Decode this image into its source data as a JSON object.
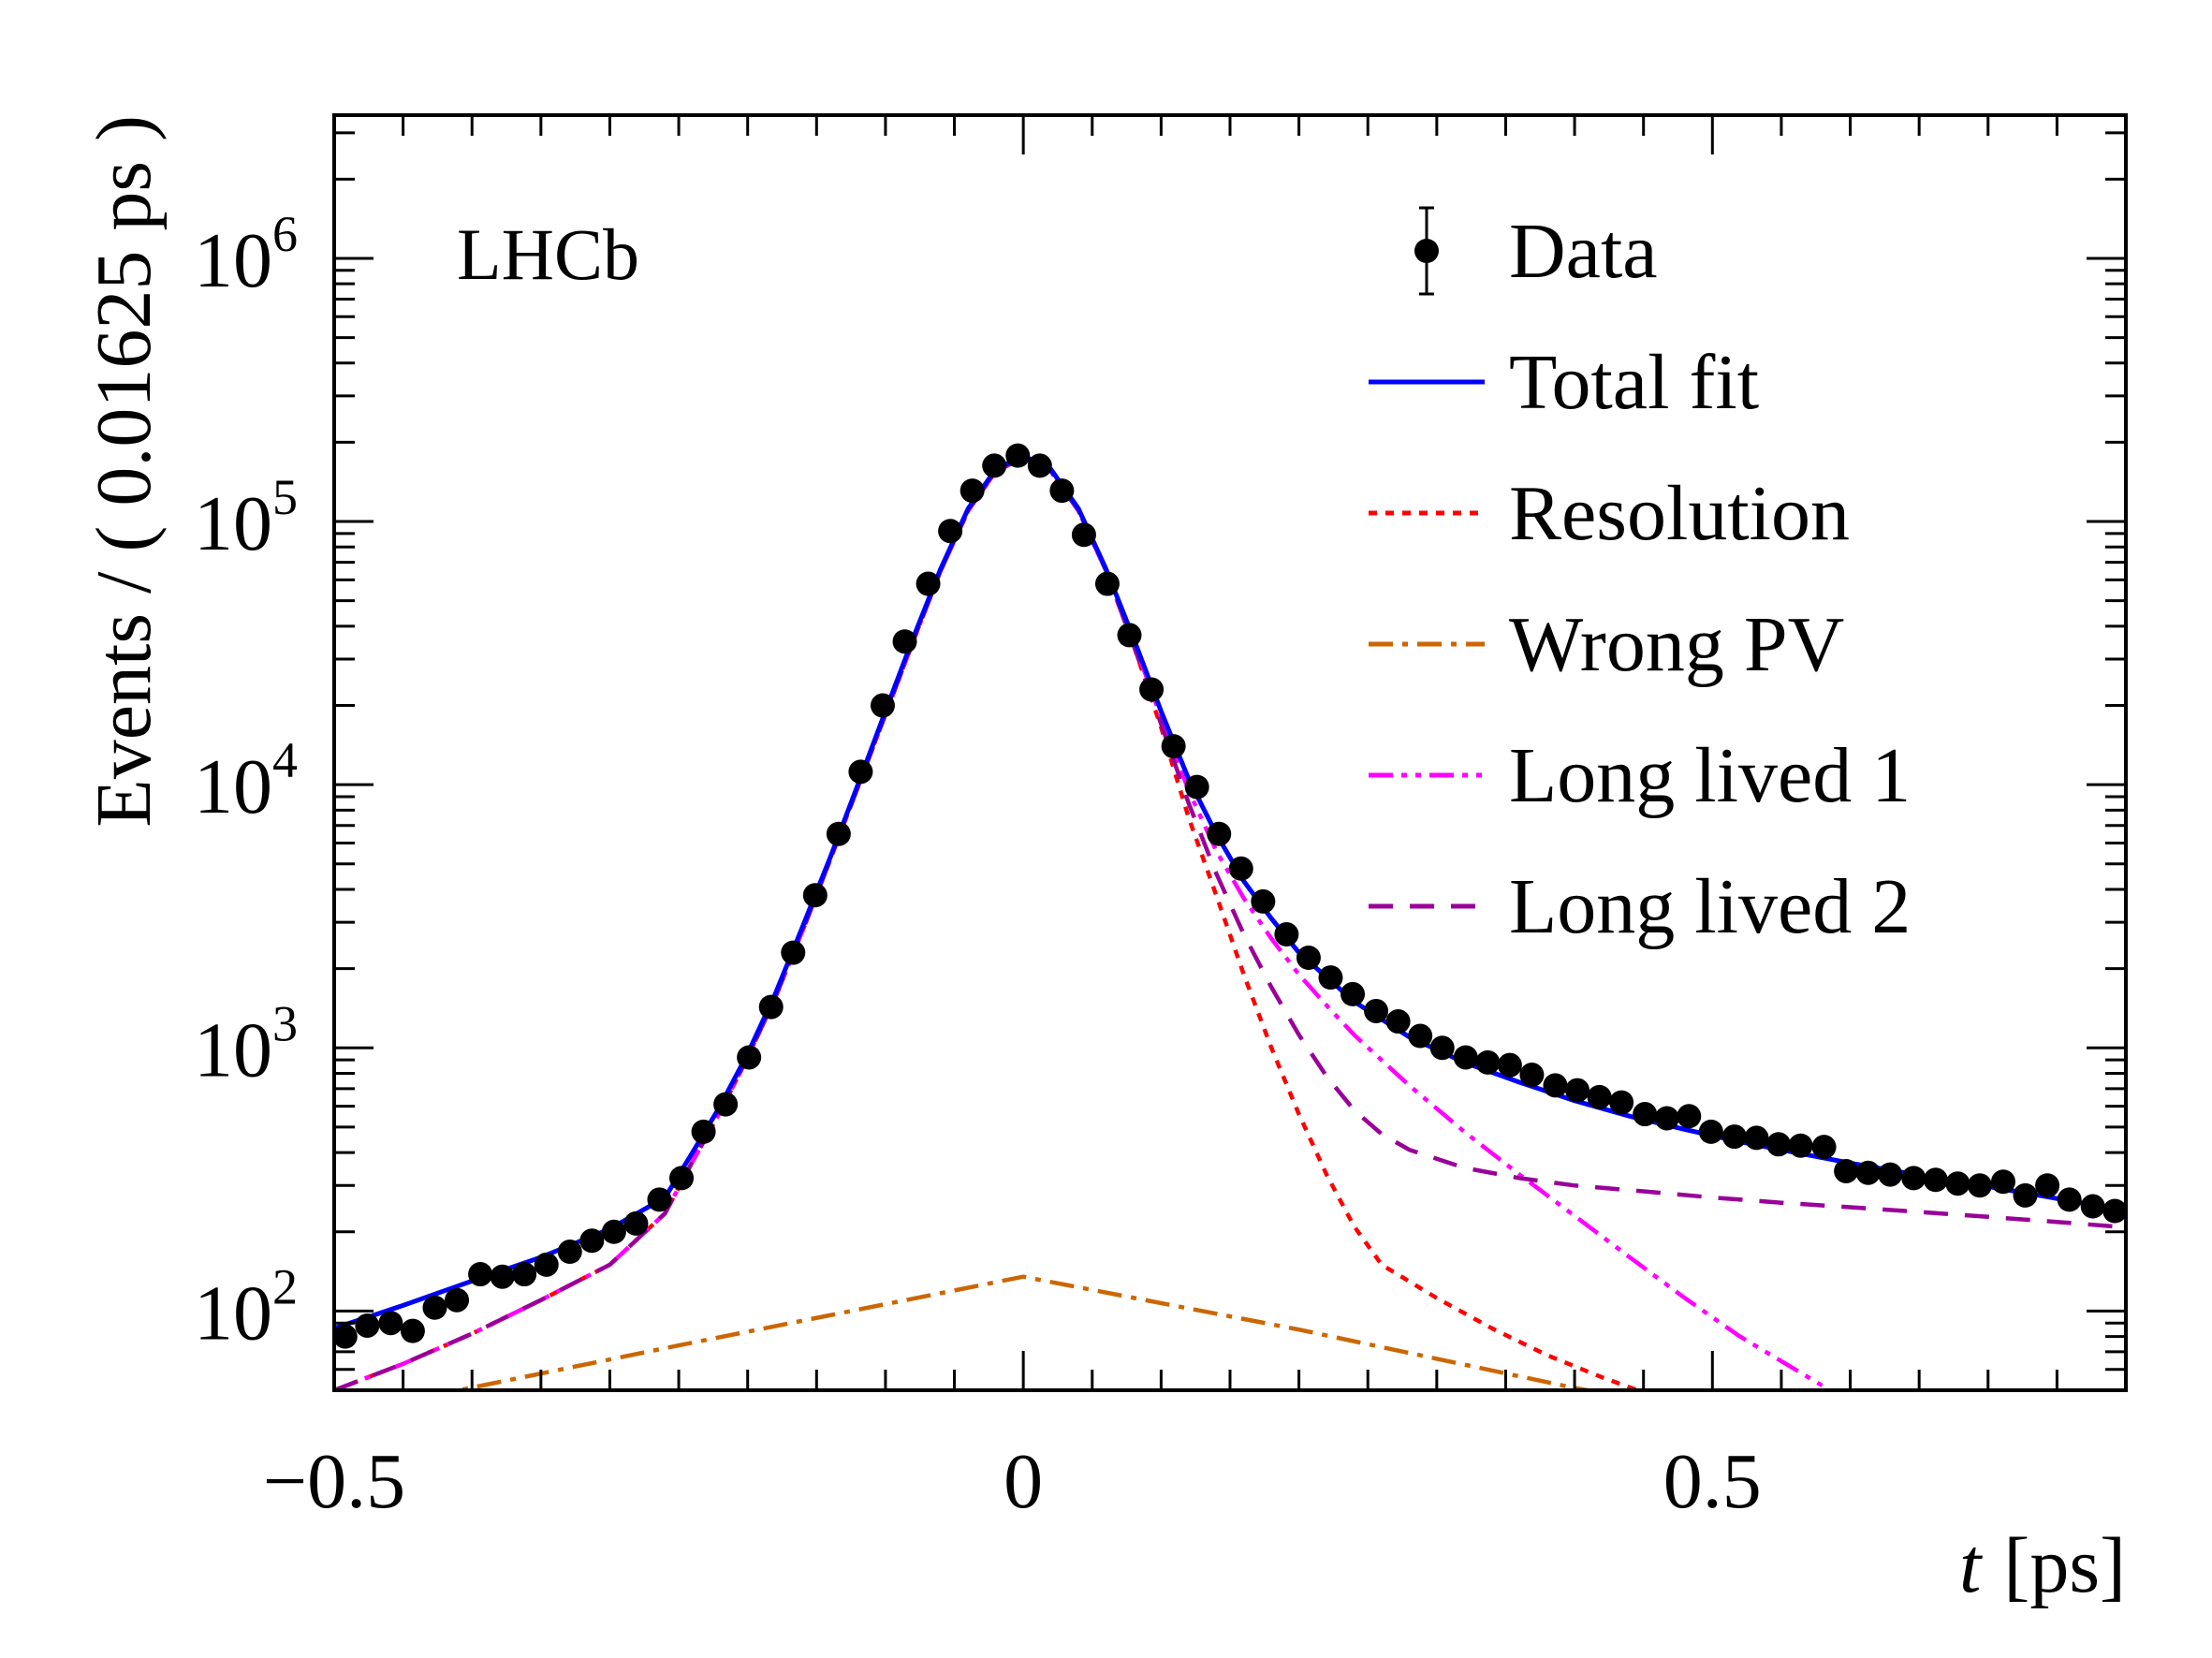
{
  "chart_data": {
    "type": "scatter",
    "experiment_label": "LHCb",
    "xlabel_italic": "t",
    "xlabel_unit": "[ps]",
    "ylabel": "Events / ( 0.01625 ps )",
    "xlim": [
      -0.5,
      0.8
    ],
    "ylim": [
      50,
      3500000
    ],
    "log_y": true,
    "grid": false,
    "legend_placement": "top-right",
    "x_tick_labels": [
      {
        "value": -0.5,
        "label": "−0.5"
      },
      {
        "value": 0,
        "label": "0"
      },
      {
        "value": 0.5,
        "label": "0.5"
      }
    ],
    "y_tick_labels": [
      {
        "value": 100,
        "base": "10",
        "exp": "2"
      },
      {
        "value": 1000,
        "base": "10",
        "exp": "3"
      },
      {
        "value": 10000,
        "base": "10",
        "exp": "4"
      },
      {
        "value": 100000,
        "base": "10",
        "exp": "5"
      },
      {
        "value": 1000000,
        "base": "10",
        "exp": "6"
      }
    ],
    "bin_width": 0.01625,
    "data_points": [
      {
        "x": -0.492,
        "y": 80
      },
      {
        "x": -0.476,
        "y": 88
      },
      {
        "x": -0.459,
        "y": 90
      },
      {
        "x": -0.443,
        "y": 84
      },
      {
        "x": -0.427,
        "y": 103
      },
      {
        "x": -0.411,
        "y": 110
      },
      {
        "x": -0.394,
        "y": 138
      },
      {
        "x": -0.378,
        "y": 135
      },
      {
        "x": -0.362,
        "y": 138
      },
      {
        "x": -0.346,
        "y": 150
      },
      {
        "x": -0.329,
        "y": 168
      },
      {
        "x": -0.313,
        "y": 185
      },
      {
        "x": -0.297,
        "y": 200
      },
      {
        "x": -0.281,
        "y": 215
      },
      {
        "x": -0.264,
        "y": 265
      },
      {
        "x": -0.248,
        "y": 320
      },
      {
        "x": -0.232,
        "y": 480
      },
      {
        "x": -0.216,
        "y": 610
      },
      {
        "x": -0.199,
        "y": 920
      },
      {
        "x": -0.183,
        "y": 1430
      },
      {
        "x": -0.167,
        "y": 2300
      },
      {
        "x": -0.151,
        "y": 3800
      },
      {
        "x": -0.134,
        "y": 6500
      },
      {
        "x": -0.118,
        "y": 11200
      },
      {
        "x": -0.102,
        "y": 20000
      },
      {
        "x": -0.086,
        "y": 35000
      },
      {
        "x": -0.069,
        "y": 58000
      },
      {
        "x": -0.053,
        "y": 92000
      },
      {
        "x": -0.037,
        "y": 131000
      },
      {
        "x": -0.021,
        "y": 163000
      },
      {
        "x": -0.004,
        "y": 178000
      },
      {
        "x": 0.012,
        "y": 163000
      },
      {
        "x": 0.028,
        "y": 131000
      },
      {
        "x": 0.044,
        "y": 89000
      },
      {
        "x": 0.061,
        "y": 58000
      },
      {
        "x": 0.077,
        "y": 37000
      },
      {
        "x": 0.093,
        "y": 23000
      },
      {
        "x": 0.109,
        "y": 14000
      },
      {
        "x": 0.126,
        "y": 9800
      },
      {
        "x": 0.142,
        "y": 6500
      },
      {
        "x": 0.158,
        "y": 4800
      },
      {
        "x": 0.174,
        "y": 3600
      },
      {
        "x": 0.191,
        "y": 2700
      },
      {
        "x": 0.207,
        "y": 2200
      },
      {
        "x": 0.223,
        "y": 1850
      },
      {
        "x": 0.239,
        "y": 1600
      },
      {
        "x": 0.256,
        "y": 1380
      },
      {
        "x": 0.272,
        "y": 1260
      },
      {
        "x": 0.288,
        "y": 1110
      },
      {
        "x": 0.304,
        "y": 1000
      },
      {
        "x": 0.321,
        "y": 920
      },
      {
        "x": 0.337,
        "y": 880
      },
      {
        "x": 0.353,
        "y": 860
      },
      {
        "x": 0.369,
        "y": 790
      },
      {
        "x": 0.386,
        "y": 720
      },
      {
        "x": 0.402,
        "y": 690
      },
      {
        "x": 0.418,
        "y": 650
      },
      {
        "x": 0.434,
        "y": 620
      },
      {
        "x": 0.451,
        "y": 560
      },
      {
        "x": 0.467,
        "y": 540
      },
      {
        "x": 0.483,
        "y": 550
      },
      {
        "x": 0.499,
        "y": 480
      },
      {
        "x": 0.516,
        "y": 460
      },
      {
        "x": 0.532,
        "y": 455
      },
      {
        "x": 0.548,
        "y": 430
      },
      {
        "x": 0.564,
        "y": 425
      },
      {
        "x": 0.581,
        "y": 420
      },
      {
        "x": 0.597,
        "y": 340
      },
      {
        "x": 0.613,
        "y": 335
      },
      {
        "x": 0.629,
        "y": 330
      },
      {
        "x": 0.646,
        "y": 320
      },
      {
        "x": 0.662,
        "y": 315
      },
      {
        "x": 0.678,
        "y": 305
      },
      {
        "x": 0.694,
        "y": 300
      },
      {
        "x": 0.711,
        "y": 310
      },
      {
        "x": 0.727,
        "y": 275
      },
      {
        "x": 0.743,
        "y": 300
      },
      {
        "x": 0.759,
        "y": 265
      },
      {
        "x": 0.776,
        "y": 250
      },
      {
        "x": 0.792,
        "y": 240
      }
    ],
    "series": [
      {
        "name": "Total fit",
        "color": "#0000ff",
        "style": "solid",
        "points": [
          [
            -0.5,
            86
          ],
          [
            -0.45,
            105
          ],
          [
            -0.4,
            130
          ],
          [
            -0.35,
            160
          ],
          [
            -0.3,
            205
          ],
          [
            -0.26,
            270
          ],
          [
            -0.24,
            400
          ],
          [
            -0.22,
            600
          ],
          [
            -0.2,
            950
          ],
          [
            -0.18,
            1600
          ],
          [
            -0.16,
            2900
          ],
          [
            -0.14,
            5300
          ],
          [
            -0.12,
            10000
          ],
          [
            -0.1,
            19000
          ],
          [
            -0.08,
            36000
          ],
          [
            -0.06,
            66000
          ],
          [
            -0.04,
            112000
          ],
          [
            -0.02,
            158000
          ],
          [
            0.0,
            178000
          ],
          [
            0.02,
            158000
          ],
          [
            0.04,
            112000
          ],
          [
            0.06,
            66000
          ],
          [
            0.08,
            36000
          ],
          [
            0.1,
            19000
          ],
          [
            0.12,
            10500
          ],
          [
            0.14,
            6500
          ],
          [
            0.16,
            4300
          ],
          [
            0.18,
            3100
          ],
          [
            0.2,
            2300
          ],
          [
            0.24,
            1500
          ],
          [
            0.28,
            1100
          ],
          [
            0.32,
            880
          ],
          [
            0.36,
            740
          ],
          [
            0.4,
            630
          ],
          [
            0.44,
            550
          ],
          [
            0.48,
            490
          ],
          [
            0.52,
            440
          ],
          [
            0.56,
            400
          ],
          [
            0.6,
            365
          ],
          [
            0.64,
            335
          ],
          [
            0.68,
            310
          ],
          [
            0.72,
            285
          ],
          [
            0.76,
            262
          ],
          [
            0.8,
            240
          ]
        ]
      },
      {
        "name": "Resolution",
        "color": "#ff0000",
        "style": "dotted",
        "points": [
          [
            -0.5,
            50
          ],
          [
            -0.45,
            63
          ],
          [
            -0.4,
            82
          ],
          [
            -0.35,
            110
          ],
          [
            -0.3,
            150
          ],
          [
            -0.26,
            235
          ],
          [
            -0.24,
            370
          ],
          [
            -0.22,
            570
          ],
          [
            -0.2,
            920
          ],
          [
            -0.18,
            1550
          ],
          [
            -0.16,
            2800
          ],
          [
            -0.14,
            5200
          ],
          [
            -0.12,
            9800
          ],
          [
            -0.1,
            18500
          ],
          [
            -0.08,
            35000
          ],
          [
            -0.06,
            65000
          ],
          [
            -0.04,
            110000
          ],
          [
            -0.02,
            155000
          ],
          [
            0.0,
            175000
          ],
          [
            0.02,
            155000
          ],
          [
            0.04,
            110000
          ],
          [
            0.06,
            65000
          ],
          [
            0.08,
            34000
          ],
          [
            0.1,
            16500
          ],
          [
            0.12,
            7500
          ],
          [
            0.14,
            3800
          ],
          [
            0.16,
            1900
          ],
          [
            0.18,
            1000
          ],
          [
            0.2,
            560
          ],
          [
            0.22,
            330
          ],
          [
            0.24,
            210
          ],
          [
            0.26,
            150
          ],
          [
            0.3,
            112
          ],
          [
            0.34,
            86
          ],
          [
            0.38,
            68
          ],
          [
            0.42,
            56
          ],
          [
            0.46,
            47
          ]
        ]
      },
      {
        "name": "Wrong PV",
        "color": "#cc6600",
        "style": "dashdot",
        "points": [
          [
            -0.5,
            40
          ],
          [
            -0.25,
            74
          ],
          [
            0.0,
            135
          ],
          [
            0.2,
            85
          ],
          [
            0.4,
            51
          ],
          [
            0.48,
            43
          ]
        ]
      },
      {
        "name": "Long lived 1",
        "color": "#ff00ff",
        "style": "dashdotdot",
        "points": [
          [
            -0.5,
            50
          ],
          [
            -0.45,
            63
          ],
          [
            -0.4,
            82
          ],
          [
            -0.35,
            110
          ],
          [
            -0.3,
            150
          ],
          [
            -0.26,
            235
          ],
          [
            -0.24,
            370
          ],
          [
            -0.22,
            570
          ],
          [
            -0.2,
            920
          ],
          [
            -0.18,
            1550
          ],
          [
            -0.16,
            2800
          ],
          [
            -0.14,
            5200
          ],
          [
            -0.12,
            9800
          ],
          [
            -0.1,
            18500
          ],
          [
            -0.08,
            35000
          ],
          [
            -0.06,
            65000
          ],
          [
            -0.04,
            110000
          ],
          [
            -0.02,
            155000
          ],
          [
            0.0,
            175000
          ],
          [
            0.02,
            155000
          ],
          [
            0.04,
            110000
          ],
          [
            0.06,
            65000
          ],
          [
            0.08,
            35000
          ],
          [
            0.1,
            18000
          ],
          [
            0.12,
            9500
          ],
          [
            0.14,
            5600
          ],
          [
            0.16,
            3700
          ],
          [
            0.18,
            2600
          ],
          [
            0.2,
            1900
          ],
          [
            0.22,
            1450
          ],
          [
            0.24,
            1120
          ],
          [
            0.28,
            720
          ],
          [
            0.32,
            480
          ],
          [
            0.36,
            330
          ],
          [
            0.4,
            230
          ],
          [
            0.44,
            160
          ],
          [
            0.48,
            112
          ],
          [
            0.52,
            80
          ],
          [
            0.56,
            60
          ],
          [
            0.6,
            45
          ]
        ]
      },
      {
        "name": "Long lived 2",
        "color": "#990099",
        "style": "dashed",
        "points": [
          [
            -0.5,
            50
          ],
          [
            -0.45,
            63
          ],
          [
            -0.4,
            82
          ],
          [
            -0.35,
            110
          ],
          [
            -0.3,
            150
          ],
          [
            -0.26,
            235
          ],
          [
            -0.24,
            370
          ],
          [
            -0.22,
            570
          ],
          [
            -0.2,
            920
          ],
          [
            -0.18,
            1550
          ],
          [
            -0.16,
            2800
          ],
          [
            -0.14,
            5200
          ],
          [
            -0.12,
            9800
          ],
          [
            -0.1,
            18500
          ],
          [
            -0.08,
            35000
          ],
          [
            -0.06,
            65000
          ],
          [
            -0.04,
            110000
          ],
          [
            -0.02,
            155000
          ],
          [
            0.0,
            175000
          ],
          [
            0.02,
            155000
          ],
          [
            0.04,
            110000
          ],
          [
            0.06,
            65000
          ],
          [
            0.08,
            34000
          ],
          [
            0.1,
            17000
          ],
          [
            0.12,
            8500
          ],
          [
            0.14,
            4600
          ],
          [
            0.16,
            2700
          ],
          [
            0.18,
            1700
          ],
          [
            0.2,
            1120
          ],
          [
            0.22,
            780
          ],
          [
            0.24,
            580
          ],
          [
            0.26,
            470
          ],
          [
            0.28,
            410
          ],
          [
            0.32,
            350
          ],
          [
            0.36,
            320
          ],
          [
            0.4,
            300
          ],
          [
            0.45,
            285
          ],
          [
            0.5,
            270
          ],
          [
            0.55,
            258
          ],
          [
            0.6,
            248
          ],
          [
            0.65,
            238
          ],
          [
            0.7,
            228
          ],
          [
            0.75,
            218
          ],
          [
            0.8,
            208
          ]
        ]
      }
    ],
    "legend": [
      {
        "label": "Data",
        "kind": "marker",
        "color": "#000000"
      },
      {
        "label": "Total fit",
        "kind": "line",
        "color": "#0000ff",
        "style": "solid"
      },
      {
        "label": "Resolution",
        "kind": "line",
        "color": "#ff0000",
        "style": "dotted"
      },
      {
        "label": "Wrong PV",
        "kind": "line",
        "color": "#cc6600",
        "style": "dashdot"
      },
      {
        "label": "Long lived 1",
        "kind": "line",
        "color": "#ff00ff",
        "style": "dashdotdot"
      },
      {
        "label": "Long lived 2",
        "kind": "line",
        "color": "#990099",
        "style": "dashed"
      }
    ]
  }
}
